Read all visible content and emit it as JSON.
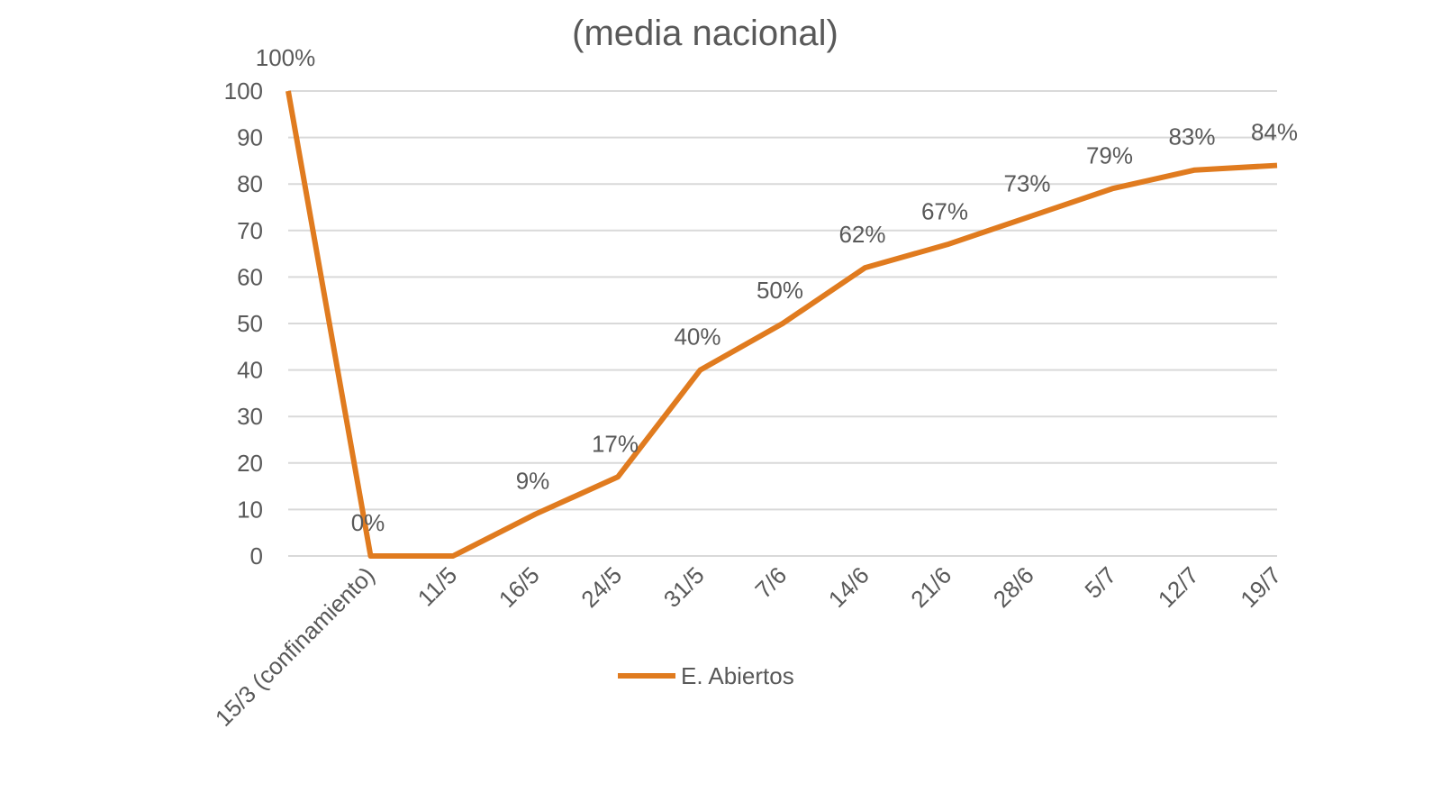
{
  "chart_data": {
    "type": "line",
    "title": "(media nacional)",
    "categories": [
      "",
      "15/3 (confinamiento)",
      "11/5",
      "16/5",
      "24/5",
      "31/5",
      "7/6",
      "14/6",
      "21/6",
      "28/6",
      "5/7",
      "12/7",
      "19/7"
    ],
    "series": [
      {
        "name": "E. Abiertos",
        "color": "#E07B1F",
        "values": [
          100,
          0,
          0,
          9,
          17,
          40,
          50,
          62,
          67,
          73,
          79,
          83,
          84
        ],
        "data_labels": [
          "100%",
          "0%",
          "",
          "9%",
          "17%",
          "40%",
          "50%",
          "62%",
          "67%",
          "73%",
          "79%",
          "83%",
          "84%"
        ]
      }
    ],
    "ylim": [
      0,
      100
    ],
    "yticks": [
      "0",
      "10",
      "20",
      "30",
      "40",
      "50",
      "60",
      "70",
      "80",
      "90",
      "100"
    ],
    "xlabel": "",
    "ylabel": "",
    "grid": true,
    "legend": "bottom"
  }
}
